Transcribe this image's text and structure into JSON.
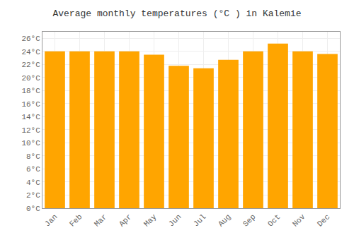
{
  "chart_data": {
    "type": "bar",
    "title": "Average monthly temperatures (°C ) in Kalemie",
    "categories": [
      "Jan",
      "Feb",
      "Mar",
      "Apr",
      "May",
      "Jun",
      "Jul",
      "Aug",
      "Sep",
      "Oct",
      "Nov",
      "Dec"
    ],
    "values": [
      24.0,
      24.0,
      24.0,
      24.0,
      23.5,
      21.8,
      21.4,
      22.7,
      24.0,
      25.2,
      24.0,
      23.6
    ],
    "color": "#FFA500",
    "ylim": [
      0,
      27
    ],
    "yticks": [
      {
        "value": 0,
        "label": "0°C"
      },
      {
        "value": 2,
        "label": "2°C"
      },
      {
        "value": 4,
        "label": "4°C"
      },
      {
        "value": 6,
        "label": "6°C"
      },
      {
        "value": 8,
        "label": "8°C"
      },
      {
        "value": 10,
        "label": "10°C"
      },
      {
        "value": 12,
        "label": "12°C"
      },
      {
        "value": 14,
        "label": "14°C"
      },
      {
        "value": 16,
        "label": "16°C"
      },
      {
        "value": 18,
        "label": "18°C"
      },
      {
        "value": 20,
        "label": "20°C"
      },
      {
        "value": 22,
        "label": "22°C"
      },
      {
        "value": 24,
        "label": "24°C"
      },
      {
        "value": 26,
        "label": "26°C"
      }
    ],
    "grid": true
  }
}
